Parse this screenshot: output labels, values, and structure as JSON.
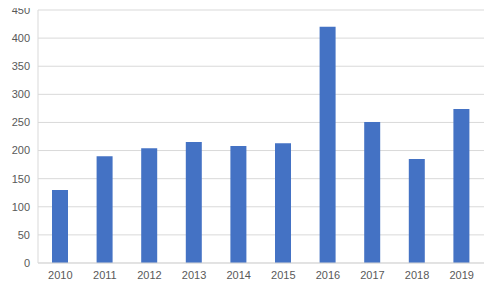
{
  "chart_data": {
    "type": "bar",
    "categories": [
      "2010",
      "2011",
      "2012",
      "2013",
      "2014",
      "2015",
      "2016",
      "2017",
      "2018",
      "2019"
    ],
    "values": [
      130,
      190,
      204,
      215,
      208,
      213,
      420,
      251,
      185,
      274
    ],
    "color": "#4472c4",
    "ylim": [
      0,
      450
    ],
    "yticks": [
      0,
      50,
      100,
      150,
      200,
      250,
      300,
      350,
      400,
      450
    ],
    "grid": true
  }
}
